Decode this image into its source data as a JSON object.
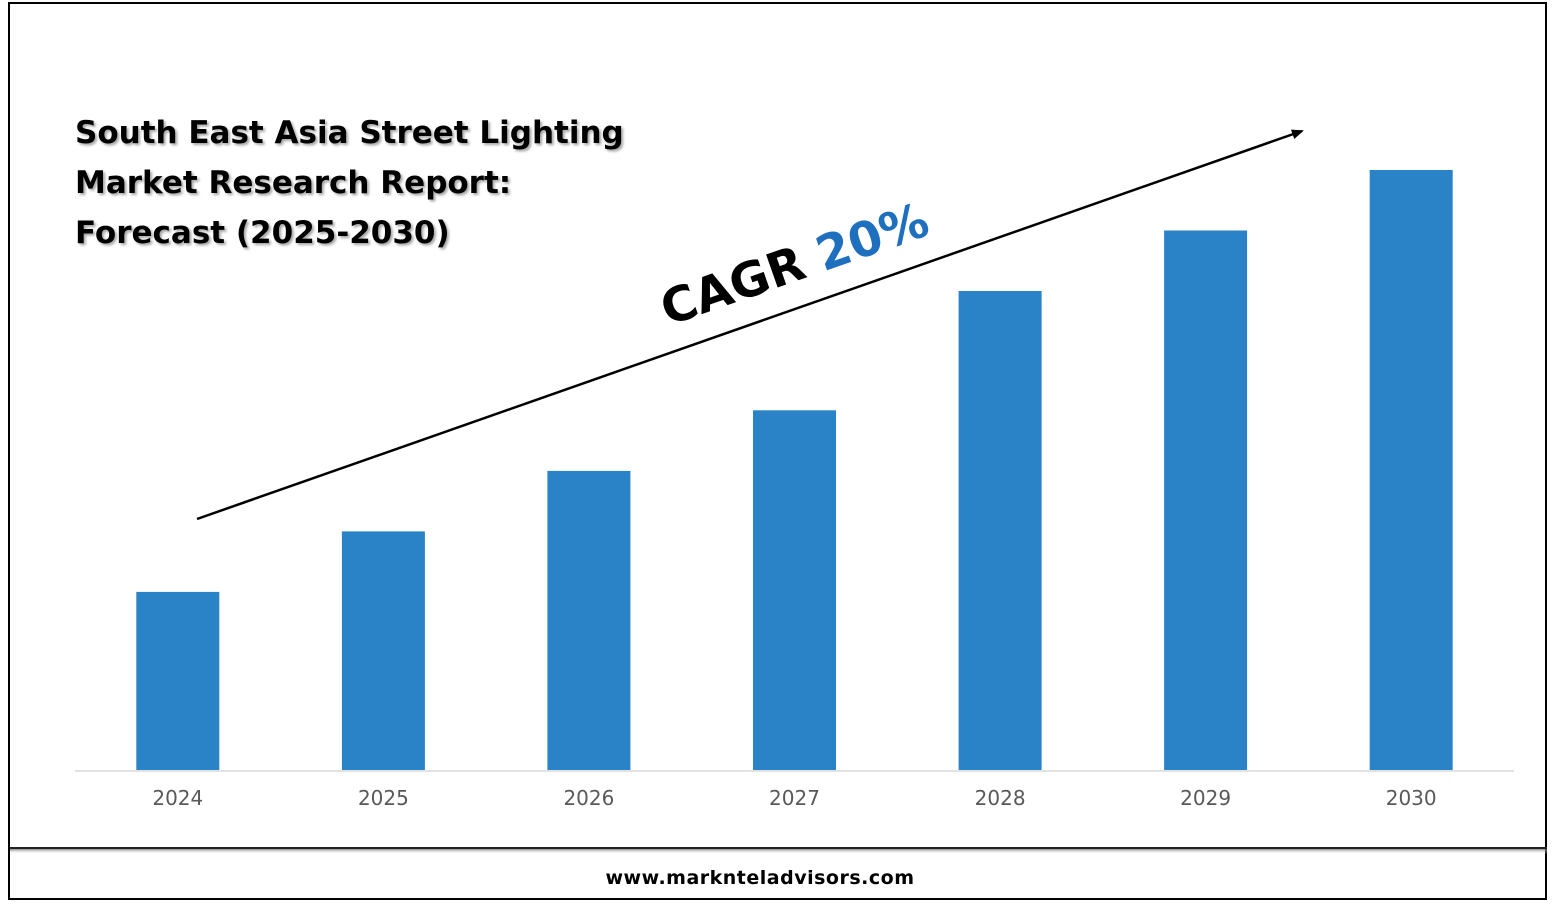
{
  "chart_data": {
    "type": "bar",
    "title": [
      "South East Asia Street Lighting",
      "Market Research Report:",
      "Forecast (2025-2030)"
    ],
    "categories": [
      "2024",
      "2025",
      "2026",
      "2027",
      "2028",
      "2029",
      "2030"
    ],
    "values": [
      1.0,
      1.34,
      1.68,
      2.02,
      2.69,
      3.03,
      3.37
    ],
    "ylim": [
      0,
      3.6
    ],
    "grid": false,
    "legend": "none",
    "annotation": {
      "label": "CAGR",
      "value": "20%"
    }
  },
  "colors": {
    "bar": "#2A83C6",
    "cagr_value": "#1F6FBF",
    "axis": "#D9D9D9"
  },
  "footer": {
    "url": "www.marknteladvisors.com"
  }
}
